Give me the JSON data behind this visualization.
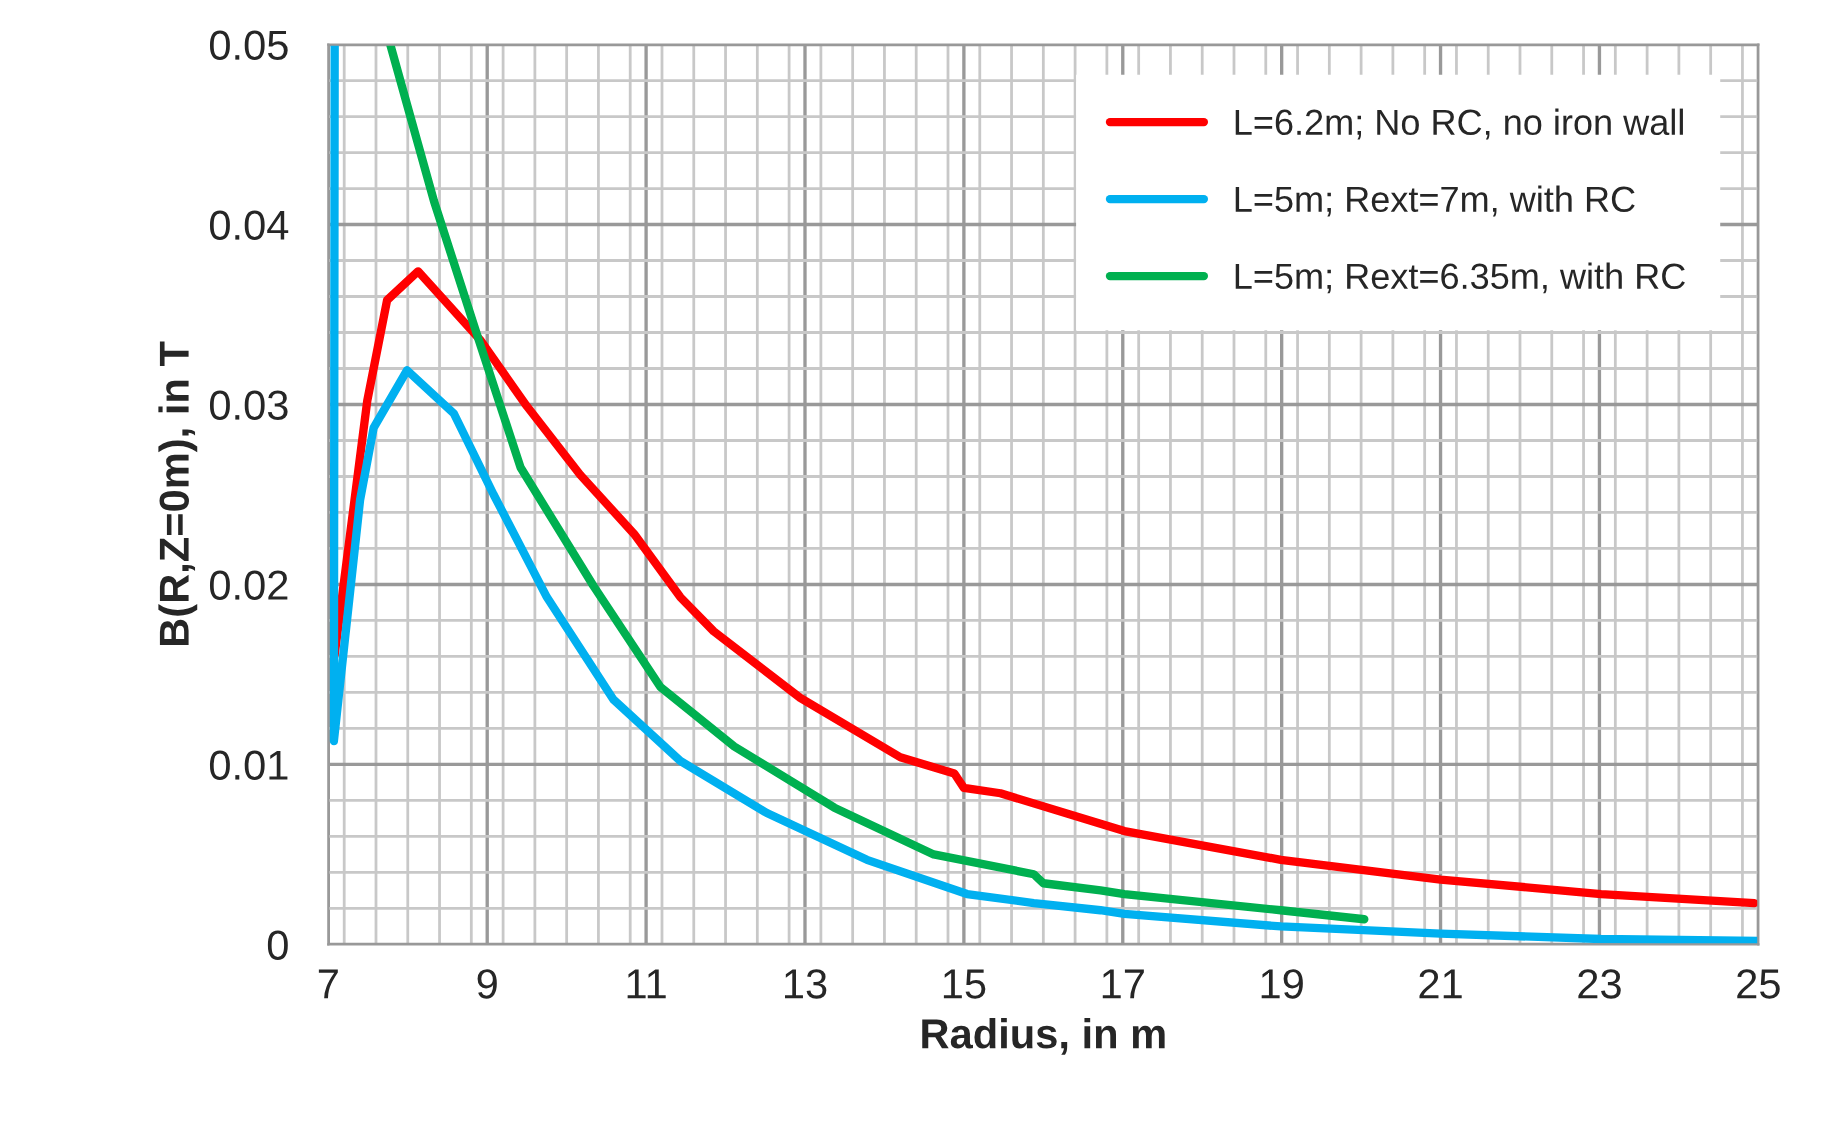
{
  "chart_data": {
    "type": "line",
    "xlabel": "Radius, in m",
    "ylabel": "B(R,Z=0m), in T",
    "xlim": [
      7,
      25
    ],
    "ylim": [
      0,
      0.05
    ],
    "xticks": [
      7,
      9,
      11,
      13,
      15,
      17,
      19,
      21,
      23,
      25
    ],
    "yticks": [
      {
        "value": 0,
        "label": "0"
      },
      {
        "value": 0.01,
        "label": "0.01"
      },
      {
        "value": 0.02,
        "label": "0.02"
      },
      {
        "value": 0.03,
        "label": "0.03"
      },
      {
        "value": 0.04,
        "label": "0.04"
      },
      {
        "value": 0.05,
        "label": "0.05"
      }
    ],
    "grid": true,
    "legend": "top right",
    "line_style": "solid",
    "marker": "none",
    "series": [
      {
        "name": "L=6.2m; No RC, no iron wall",
        "color": "#ff0000",
        "x": [
          7.08,
          7.19,
          7.49,
          7.74,
          8.13,
          8.91,
          9.5,
          10.17,
          10.85,
          11.43,
          11.85,
          12.94,
          14.2,
          14.88,
          15.0,
          15.46,
          16.72,
          17.02,
          18.99,
          21.0,
          23.02,
          24.95
        ],
        "values": [
          0.0161,
          0.0199,
          0.0302,
          0.0358,
          0.0374,
          0.0336,
          0.0299,
          0.0261,
          0.0228,
          0.0193,
          0.0174,
          0.0137,
          0.0104,
          0.0095,
          0.0087,
          0.0084,
          0.0067,
          0.0063,
          0.0047,
          0.0036,
          0.0028,
          0.0023
        ]
      },
      {
        "name": "L=5m; Rext=7m, with RC",
        "color": "#00b0f0",
        "x": [
          7.08,
          7.07,
          7.4,
          7.57,
          7.99,
          8.58,
          9.08,
          9.75,
          10.59,
          11.43,
          12.52,
          13.78,
          15.04,
          15.88,
          16.72,
          17.02,
          18.99,
          21.0,
          23.02,
          25.0
        ],
        "values": [
          0.05,
          0.0113,
          0.0247,
          0.0287,
          0.0319,
          0.0295,
          0.025,
          0.0193,
          0.0136,
          0.0102,
          0.0073,
          0.0047,
          0.0028,
          0.0023,
          0.0019,
          0.0017,
          0.001,
          0.0006,
          0.0003,
          0.0002
        ]
      },
      {
        "name": "L=5m; Rext=6.35m, with RC",
        "color": "#00b050",
        "x": [
          7.78,
          8.33,
          8.87,
          9.42,
          10.34,
          11.18,
          12.11,
          13.37,
          14.62,
          15.88,
          16.0,
          16.72,
          17.02,
          18.99,
          20.04
        ],
        "values": [
          0.05,
          0.0413,
          0.0339,
          0.0265,
          0.0199,
          0.0143,
          0.011,
          0.0076,
          0.005,
          0.0039,
          0.0034,
          0.003,
          0.0028,
          0.0019,
          0.0014
        ]
      }
    ]
  }
}
